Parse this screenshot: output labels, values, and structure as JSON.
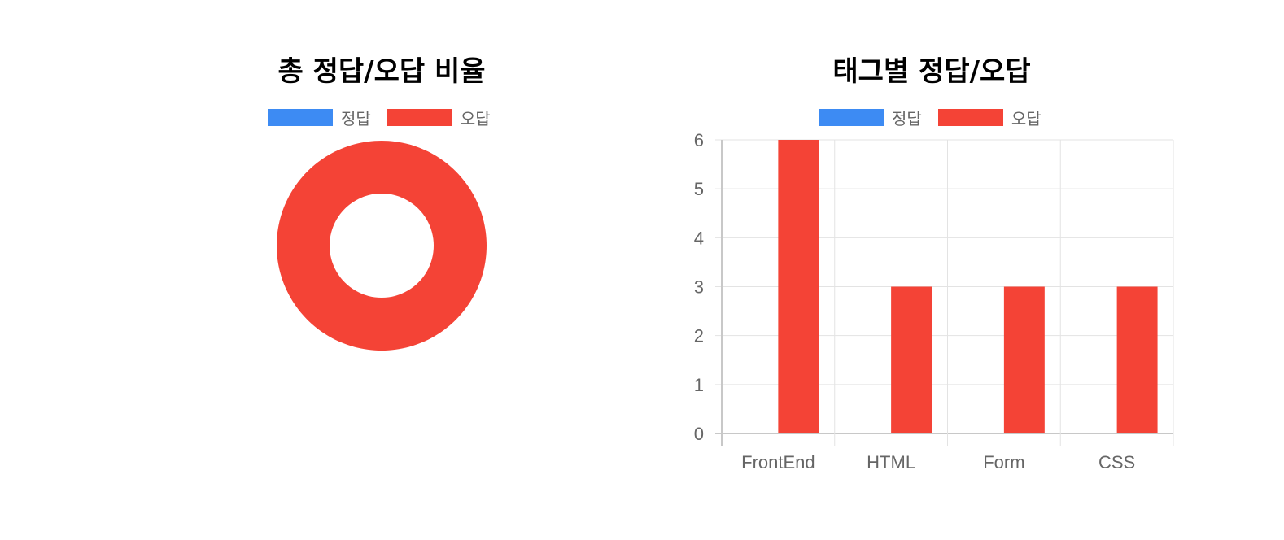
{
  "colors": {
    "correct": "#3d8bf3",
    "wrong": "#f44336",
    "grid": "#e3e3e3",
    "axis": "#c8c8c8",
    "tick": "#666666"
  },
  "chart_data": [
    {
      "type": "pie",
      "variant": "doughnut",
      "title": "총 정답/오답 비율",
      "legend": {
        "position": "top",
        "entries": [
          "정답",
          "오답"
        ]
      },
      "labels": [
        "정답",
        "오답"
      ],
      "values": [
        0,
        15
      ]
    },
    {
      "type": "bar",
      "title": "태그별 정답/오답",
      "legend": {
        "position": "top",
        "entries": [
          "정답",
          "오답"
        ]
      },
      "categories": [
        "FrontEnd",
        "HTML",
        "Form",
        "CSS"
      ],
      "series": [
        {
          "name": "정답",
          "values": [
            0,
            0,
            0,
            0
          ]
        },
        {
          "name": "오답",
          "values": [
            6,
            3,
            3,
            3
          ]
        }
      ],
      "ylim": [
        0,
        6
      ],
      "yticks": [
        "0",
        "1",
        "2",
        "3",
        "4",
        "5",
        "6"
      ],
      "grid": true
    }
  ]
}
